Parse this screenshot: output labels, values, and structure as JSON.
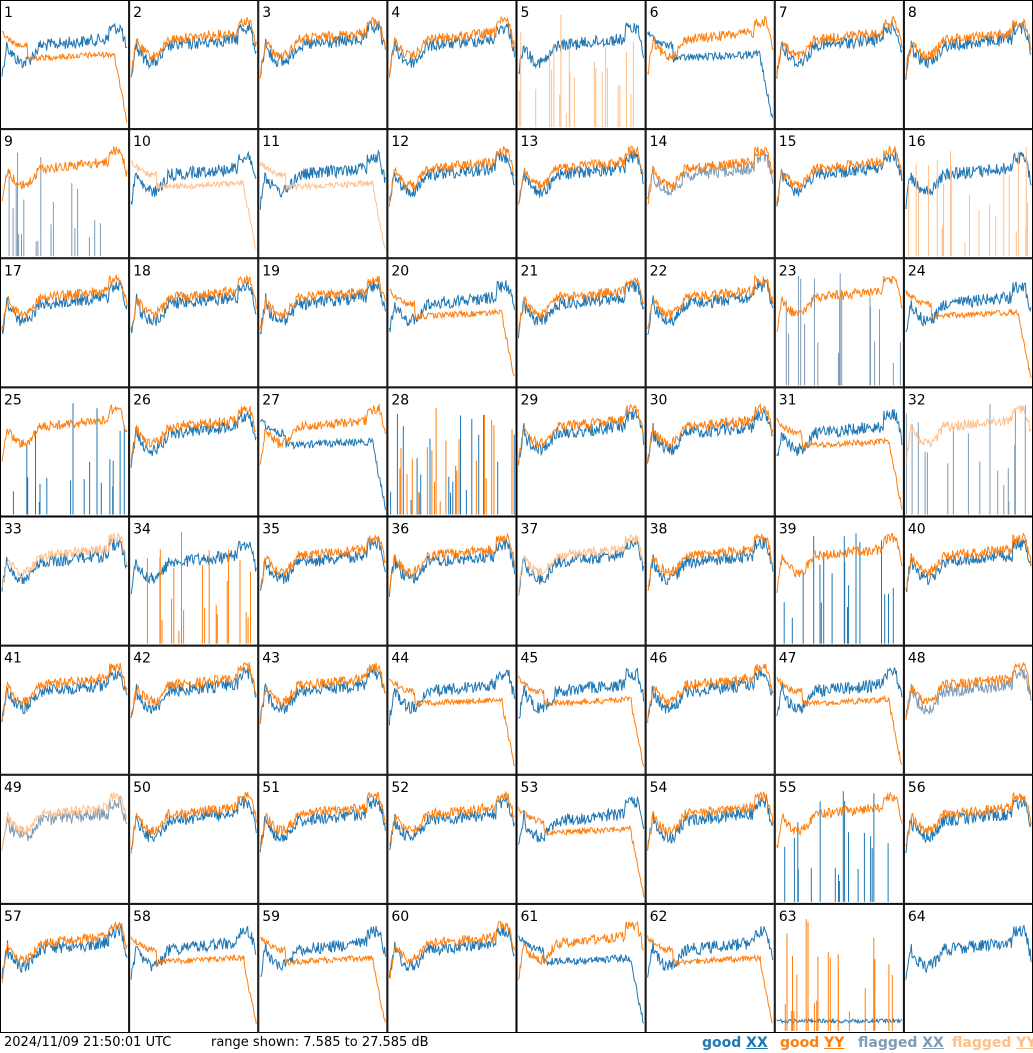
{
  "chart_data": {
    "type": "line",
    "layout": "small-multiples",
    "grid": "8x8",
    "panels_count": 64,
    "panel_labels": [
      "1",
      "2",
      "3",
      "4",
      "5",
      "6",
      "7",
      "8",
      "9",
      "10",
      "11",
      "12",
      "13",
      "14",
      "15",
      "16",
      "17",
      "18",
      "19",
      "20",
      "21",
      "22",
      "23",
      "24",
      "25",
      "26",
      "27",
      "28",
      "29",
      "30",
      "31",
      "32",
      "33",
      "34",
      "35",
      "36",
      "37",
      "38",
      "39",
      "40",
      "41",
      "42",
      "43",
      "44",
      "45",
      "46",
      "47",
      "48",
      "49",
      "50",
      "51",
      "52",
      "53",
      "54",
      "55",
      "56",
      "57",
      "58",
      "59",
      "60",
      "61",
      "62",
      "63",
      "64"
    ],
    "range_db": [
      7.585,
      27.585
    ],
    "series": [
      {
        "key": "good_xx",
        "color": "#1f77b4"
      },
      {
        "key": "good_yy",
        "color": "#ff7f0e"
      },
      {
        "key": "flagged_xx",
        "color": "#7f9bb5"
      },
      {
        "key": "flagged_yy",
        "color": "#ffbf8a"
      }
    ],
    "panel_styles": {
      "1": {
        "xx": "good",
        "yy": "good",
        "yy_shape": "droop"
      },
      "5": {
        "xx": "good",
        "yy": "flagged",
        "yy_shape": "spikes"
      },
      "6": {
        "xx": "good",
        "yy": "good",
        "xx_shape": "droop"
      },
      "9": {
        "xx": "flagged",
        "yy": "good",
        "xx_shape": "spikes"
      },
      "10": {
        "xx": "good",
        "yy": "flagged",
        "yy_shape": "droop"
      },
      "11": {
        "xx": "good",
        "yy": "flagged",
        "yy_shape": "droop"
      },
      "14": {
        "xx": "flagged",
        "yy": "good"
      },
      "16": {
        "xx": "good",
        "yy": "flagged",
        "yy_shape": "spikes"
      },
      "20": {
        "xx": "good",
        "yy": "good",
        "yy_shape": "droop"
      },
      "23": {
        "xx": "flagged",
        "yy": "good",
        "xx_shape": "spikes"
      },
      "24": {
        "xx": "good",
        "yy": "good",
        "yy_shape": "droop"
      },
      "25": {
        "xx": "good",
        "yy": "good",
        "xx_shape": "spikes"
      },
      "27": {
        "xx": "good",
        "yy": "good",
        "xx_shape": "droop"
      },
      "28": {
        "xx": "good",
        "yy": "good",
        "yy_shape": "spikes",
        "xx_shape": "spikes"
      },
      "31": {
        "xx": "good",
        "yy": "good",
        "yy_shape": "droop"
      },
      "32": {
        "xx": "flagged",
        "yy": "flagged",
        "xx_shape": "spikes"
      },
      "33": {
        "xx": "good",
        "yy": "flagged"
      },
      "34": {
        "xx": "good",
        "yy": "good",
        "yy_shape": "spikes"
      },
      "37": {
        "xx": "good",
        "yy": "flagged"
      },
      "39": {
        "xx": "good",
        "yy": "good",
        "xx_shape": "spikes"
      },
      "44": {
        "xx": "good",
        "yy": "good",
        "yy_shape": "droop"
      },
      "45": {
        "xx": "good",
        "yy": "good",
        "yy_shape": "droop"
      },
      "47": {
        "xx": "good",
        "yy": "good",
        "yy_shape": "droop"
      },
      "48": {
        "xx": "flagged",
        "yy": "good"
      },
      "49": {
        "xx": "flagged",
        "yy": "flagged"
      },
      "53": {
        "xx": "good",
        "yy": "good",
        "yy_shape": "droop"
      },
      "55": {
        "xx": "good",
        "yy": "good",
        "xx_shape": "spikes"
      },
      "58": {
        "xx": "good",
        "yy": "good",
        "yy_shape": "droop"
      },
      "59": {
        "xx": "good",
        "yy": "good",
        "yy_shape": "droop"
      },
      "61": {
        "xx": "good",
        "yy": "good",
        "xx_shape": "droop"
      },
      "62": {
        "xx": "good",
        "yy": "good",
        "yy_shape": "droop"
      },
      "63": {
        "xx": "good",
        "yy": "good",
        "yy_shape": "spikes",
        "xx_shape": "flat-low"
      },
      "64": {
        "xx": "good",
        "yy": "good",
        "yy_shape": "none"
      }
    }
  },
  "footer": {
    "timestamp": "2024/11/09 21:50:01 UTC",
    "range_text": "range shown: 7.585 to 27.585 dB"
  },
  "legend": {
    "good_xx": {
      "prefix": "good",
      "pol": "XX",
      "color": "#1f77b4"
    },
    "good_yy": {
      "prefix": "good",
      "pol": "YY",
      "color": "#ff7f0e"
    },
    "flagged_xx": {
      "prefix": "flagged",
      "pol": "XX",
      "color": "#7f9bb5"
    },
    "flagged_yy": {
      "prefix": "flagged",
      "pol": "YY",
      "color": "#ffbf8a"
    }
  }
}
